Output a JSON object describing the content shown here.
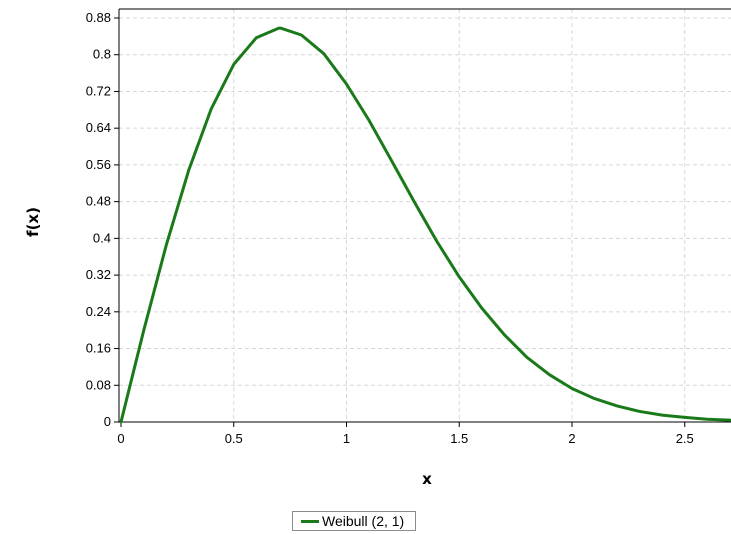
{
  "chart_data": {
    "type": "line",
    "title": "",
    "xlabel": "x",
    "ylabel": "f(x)",
    "xlim": [
      0,
      2.7
    ],
    "ylim": [
      0,
      0.88
    ],
    "xticks": [
      "0",
      "0.5",
      "1",
      "1.5",
      "2",
      "2.5"
    ],
    "yticks": [
      "0",
      "0.08",
      "0.16",
      "0.24",
      "0.32",
      "0.4",
      "0.48",
      "0.56",
      "0.64",
      "0.72",
      "0.8",
      "0.88"
    ],
    "grid": true,
    "legend_position": "bottom-center",
    "series": [
      {
        "name": "Weibull (2, 1)",
        "color": "#1a7a1a",
        "x": [
          0,
          0.1,
          0.2,
          0.3,
          0.4,
          0.5,
          0.6,
          0.7,
          0.7071,
          0.8,
          0.9,
          1.0,
          1.1,
          1.2,
          1.3,
          1.4,
          1.5,
          1.6,
          1.7,
          1.8,
          1.9,
          2.0,
          2.1,
          2.2,
          2.3,
          2.4,
          2.5,
          2.6,
          2.7
        ],
        "y": [
          0,
          0.198,
          0.384,
          0.548,
          0.682,
          0.779,
          0.837,
          0.858,
          0.858,
          0.843,
          0.802,
          0.736,
          0.657,
          0.569,
          0.48,
          0.394,
          0.316,
          0.248,
          0.19,
          0.141,
          0.103,
          0.073,
          0.051,
          0.035,
          0.023,
          0.015,
          0.01,
          0.006,
          0.004
        ]
      }
    ]
  }
}
